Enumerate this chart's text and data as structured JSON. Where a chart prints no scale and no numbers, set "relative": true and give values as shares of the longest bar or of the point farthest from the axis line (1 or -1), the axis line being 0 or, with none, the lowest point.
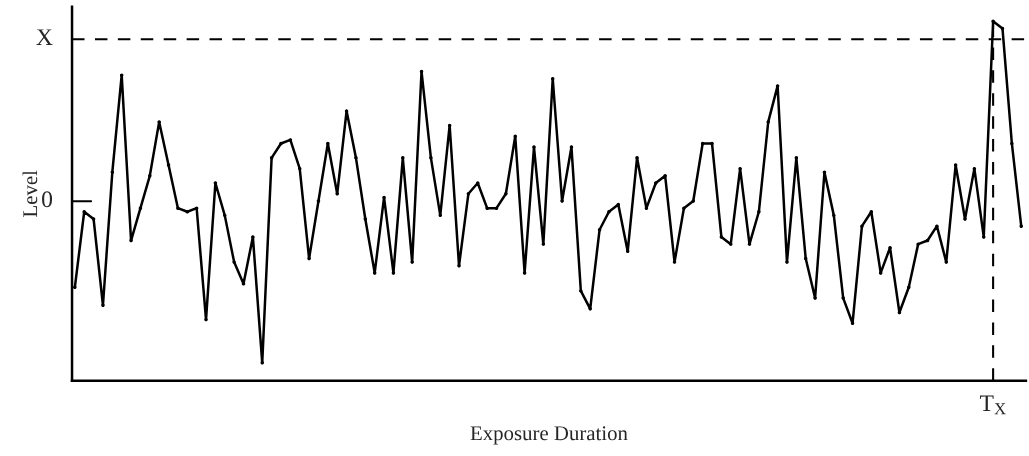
{
  "chart_data": {
    "type": "line",
    "xlabel": "Exposure Duration",
    "ylabel": "Level",
    "relative": true,
    "categories": [
      null,
      null,
      null,
      null,
      null,
      null,
      null,
      null,
      null,
      null,
      null,
      null,
      null,
      null,
      null,
      null,
      null,
      null,
      null,
      null,
      null,
      null,
      null,
      null,
      null,
      null,
      null,
      null,
      null,
      null,
      null,
      null,
      null,
      null,
      null,
      null,
      null,
      null,
      null,
      null,
      null,
      null,
      null,
      null,
      null,
      null,
      null,
      null,
      null,
      null,
      null,
      null,
      null,
      null,
      null,
      null,
      null,
      null,
      null,
      null,
      null,
      null,
      null,
      null,
      null,
      null,
      null,
      null,
      null,
      null,
      null,
      null,
      null,
      null,
      null,
      null,
      null,
      null,
      null,
      null,
      null,
      null,
      null,
      null,
      null,
      null,
      null,
      null,
      null,
      null,
      null,
      null,
      null,
      null,
      null,
      null,
      null,
      null,
      null,
      null,
      null,
      null
    ],
    "series": [
      {
        "color": "#000000",
        "values": [
          0.26,
          0.47,
          0.45,
          0.21,
          0.58,
          0.85,
          0.39,
          0.48,
          0.57,
          0.72,
          0.6,
          0.48,
          0.47,
          0.48,
          0.17,
          0.55,
          0.46,
          0.33,
          0.27,
          0.4,
          0.05,
          0.62,
          0.66,
          0.67,
          0.59,
          0.34,
          0.5,
          0.66,
          0.52,
          0.75,
          0.62,
          0.45,
          0.3,
          0.51,
          0.3,
          0.62,
          0.33,
          0.86,
          0.62,
          0.46,
          0.71,
          0.32,
          0.52,
          0.55,
          0.48,
          0.48,
          0.52,
          0.68,
          0.3,
          0.65,
          0.38,
          0.84,
          0.5,
          0.65,
          0.25,
          0.2,
          0.42,
          0.47,
          0.49,
          0.36,
          0.62,
          0.48,
          0.55,
          0.57,
          0.33,
          0.48,
          0.5,
          0.66,
          0.66,
          0.4,
          0.38,
          0.59,
          0.38,
          0.47,
          0.72,
          0.82,
          0.33,
          0.62,
          0.34,
          0.23,
          0.58,
          0.46,
          0.23,
          0.16,
          0.43,
          0.47,
          0.3,
          0.37,
          0.19,
          0.26,
          0.38,
          0.39,
          0.43,
          0.33,
          0.6,
          0.45,
          0.59,
          0.4,
          1,
          0.98,
          0.66,
          0.43
        ]
      }
    ],
    "annotations": [
      "0",
      "T$_{X}$"
    ],
    "ref_lines": [
      {
        "axis": "y",
        "value": 0.95,
        "label": "X",
        "line_style": "dashed",
        "color": "#000000"
      }
    ],
    "marker": "circle",
    "line_style": "solid",
    "grid": false,
    "legend": false
  }
}
